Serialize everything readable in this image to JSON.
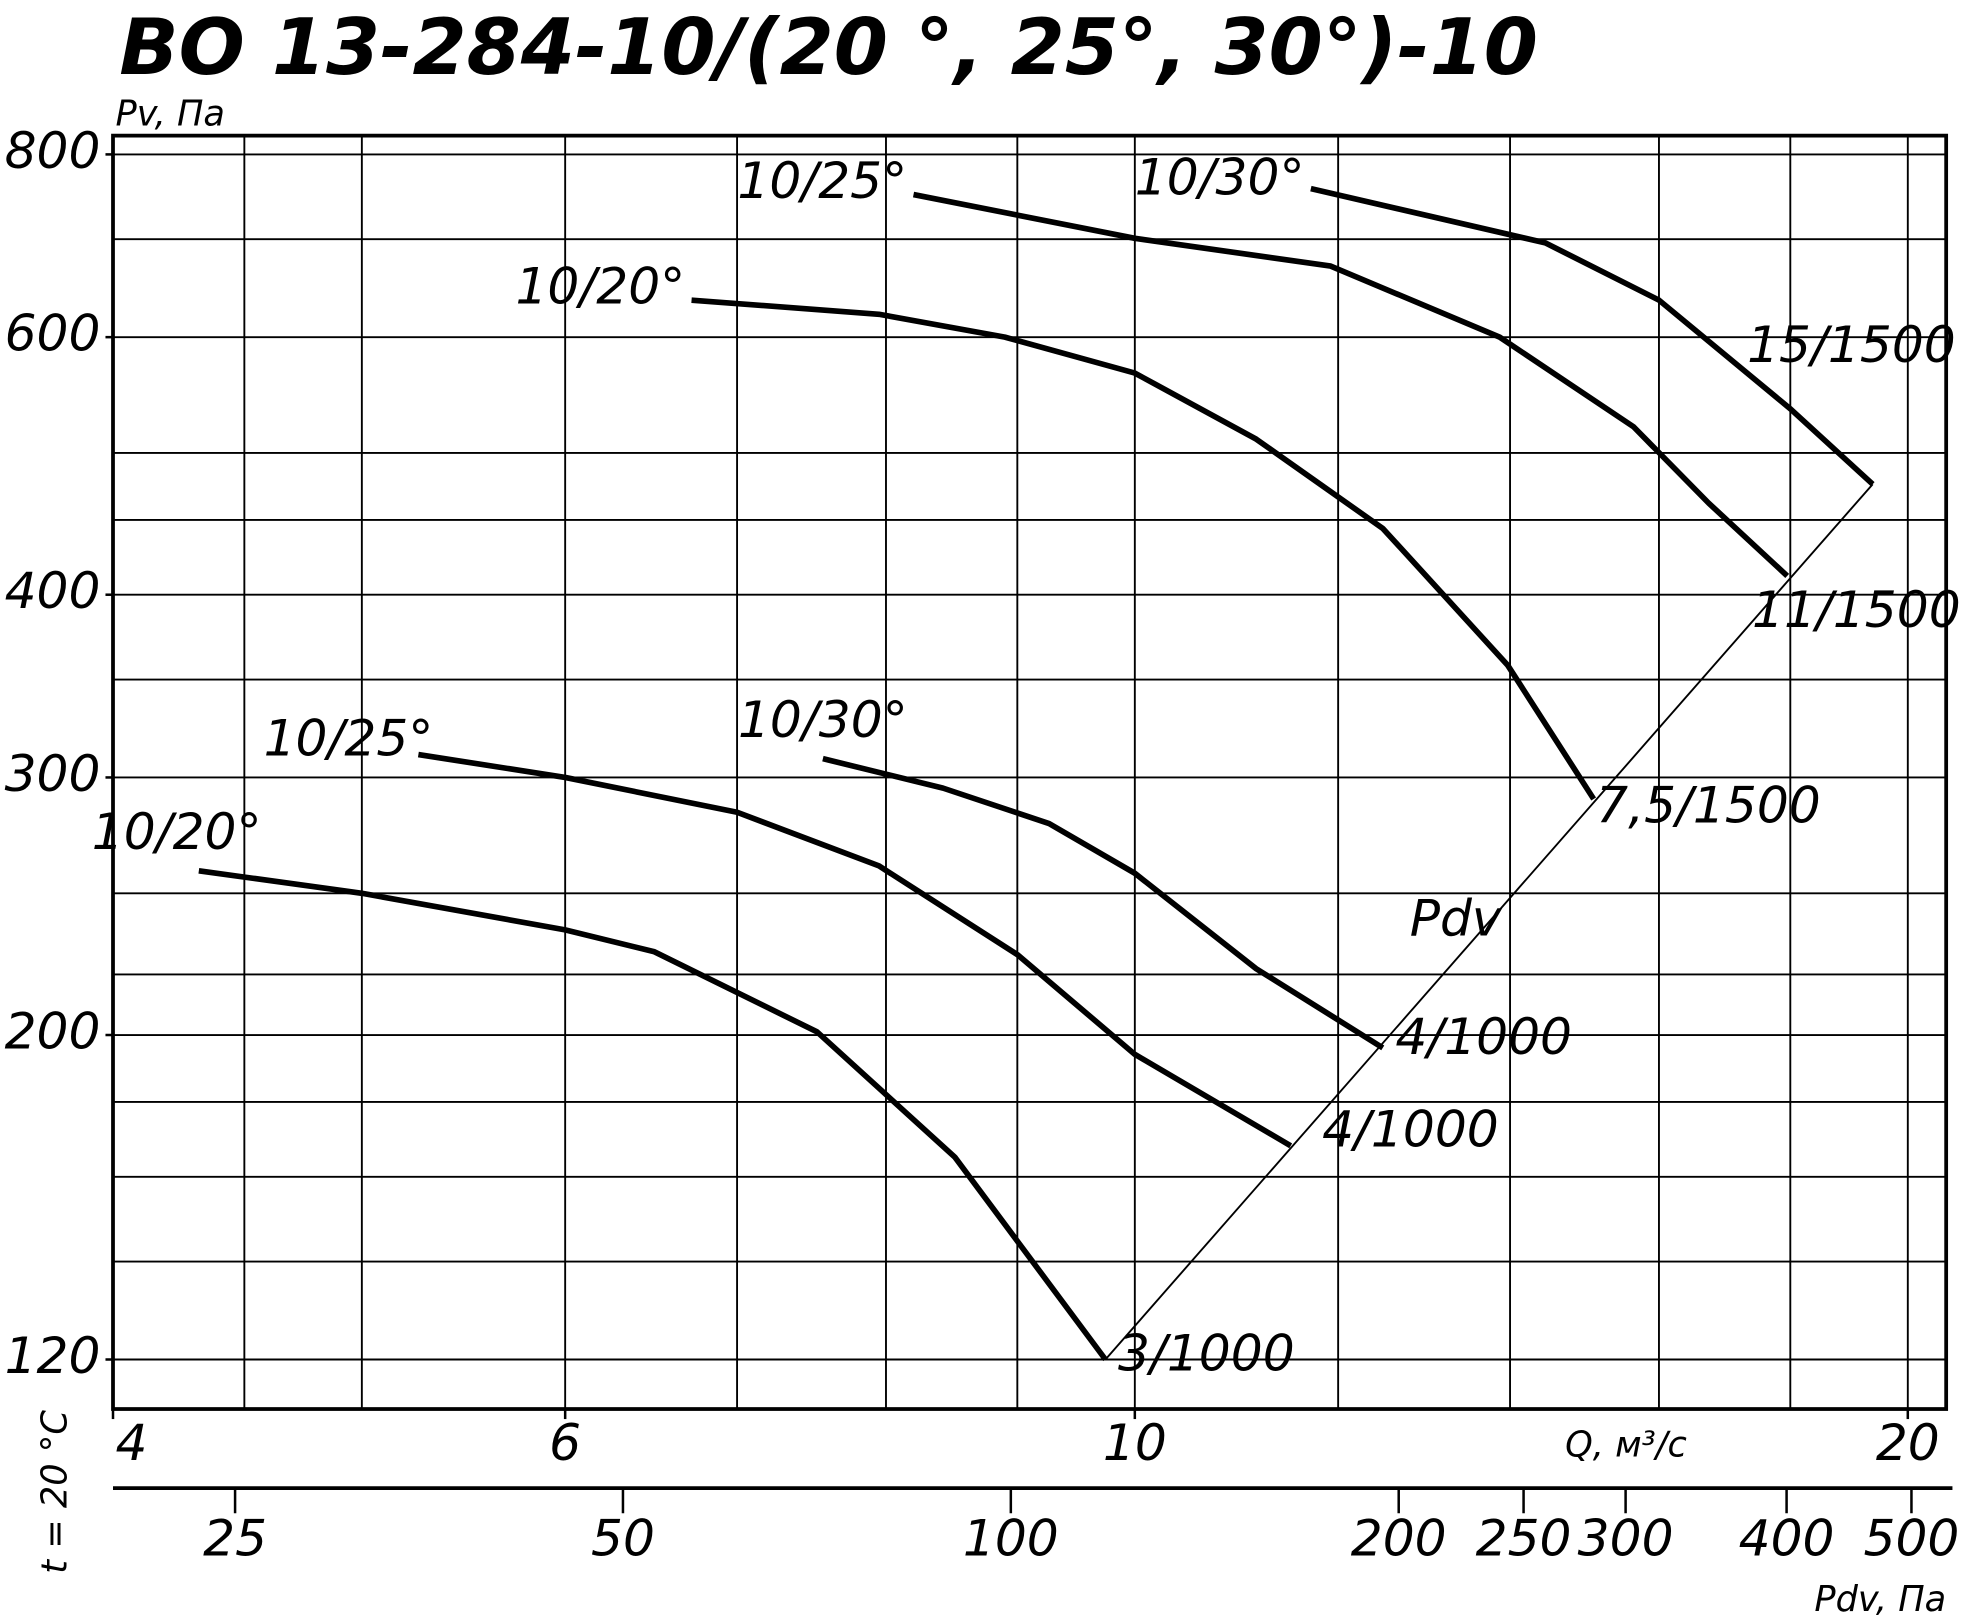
{
  "chart_data": {
    "type": "line",
    "title": "ВО 13-284-10/(20 °, 25°, 30°)-10",
    "y_label": "Pv, Па",
    "x_label": "Q, м³/с",
    "x2_label": "Pdv, Па",
    "side_note": "t = 20 °C",
    "log_x": true,
    "log_y": true,
    "xlim": [
      4,
      20.7
    ],
    "ylim": [
      111,
      824
    ],
    "xticks": [
      4,
      6,
      10,
      20
    ],
    "x_grid": [
      4.5,
      5,
      6,
      7,
      8,
      9,
      10,
      12,
      14,
      16,
      18,
      20
    ],
    "yticks": [
      120,
      200,
      300,
      400,
      600,
      800
    ],
    "y_grid": [
      120,
      140,
      160,
      180,
      200,
      220,
      250,
      300,
      350,
      400,
      450,
      500,
      600,
      700,
      800
    ],
    "x2lim": [
      20.1,
      532
    ],
    "x2ticks": [
      25,
      50,
      100,
      200,
      250,
      300,
      400,
      500
    ],
    "series": [
      {
        "name": "10/20°",
        "end_label": "7,5/1500",
        "color": "#000000",
        "x": [
          6.72,
          7.95,
          8.9,
          10,
          11.15,
          12.49,
          13.97,
          15.09
        ],
        "values": [
          636,
          622,
          600,
          567,
          511,
          444,
          358,
          290
        ]
      },
      {
        "name": "10/25°",
        "end_label": "11/1500",
        "color": "#000000",
        "x": [
          8.2,
          10,
          11.92,
          13.87,
          15.64,
          16.73,
          17.95
        ],
        "values": [
          751,
          701,
          671,
          600,
          521,
          462,
          412
        ]
      },
      {
        "name": "10/30°",
        "end_label": "15/1500",
        "color": "#000000",
        "x": [
          11.71,
          14.45,
          16,
          18,
          19.38
        ],
        "values": [
          758,
          696,
          636,
          536,
          476
        ]
      },
      {
        "name": "10/20°",
        "end_label": "3/1000",
        "color": "#000000",
        "x": [
          4.32,
          5,
          6,
          6.5,
          7.52,
          8.51,
          9.74
        ],
        "values": [
          259,
          250,
          236,
          228,
          201,
          165,
          120
        ]
      },
      {
        "name": "10/25°",
        "end_label": "4/1000",
        "color": "#000000",
        "x": [
          5.26,
          6,
          7,
          7.95,
          9,
          10,
          11.5
        ],
        "values": [
          311,
          300,
          284,
          261,
          227,
          194,
          168
        ]
      },
      {
        "name": "10/30°",
        "end_label": "4/1000",
        "color": "#000000",
        "x": [
          7.56,
          8.42,
          9.26,
          10,
          11.15,
          12.49
        ],
        "values": [
          309,
          295,
          279,
          258,
          222,
          196
        ]
      },
      {
        "name": "Pdv",
        "color": "#000000",
        "x": [
          9.74,
          19.38
        ],
        "values": [
          120,
          476
        ]
      }
    ]
  }
}
